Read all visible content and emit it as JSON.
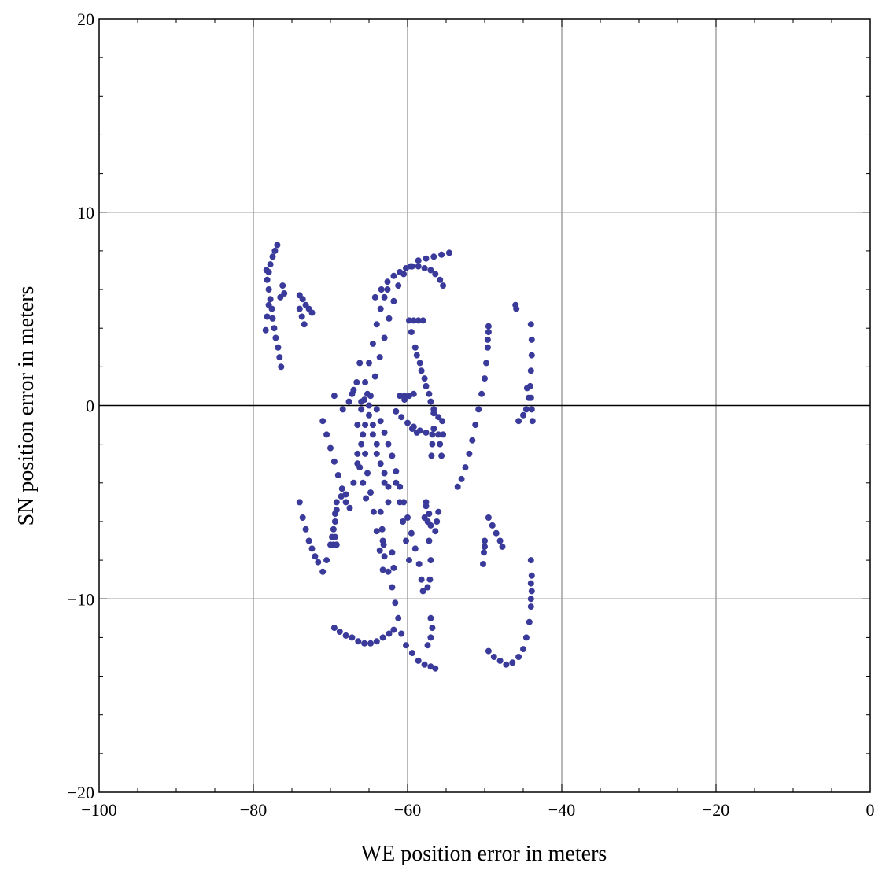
{
  "chart_data": {
    "type": "scatter",
    "xlabel": "WE position error in meters",
    "ylabel": "SN position error in meters",
    "xlim": [
      -100,
      0
    ],
    "ylim": [
      -20,
      20
    ],
    "x_ticks": [
      -100,
      -80,
      -60,
      -40,
      -20,
      0
    ],
    "y_ticks": [
      -20,
      -10,
      0,
      10,
      20
    ],
    "x_tick_labels": [
      "−100",
      "−80",
      "−60",
      "−40",
      "−20",
      "0"
    ],
    "y_tick_labels": [
      "−20",
      "−10",
      "0",
      "10",
      "20"
    ],
    "grid": true,
    "zero_line": true,
    "marker_color": "#3a3a9a",
    "series": [
      {
        "points": [
          [
            -78.3,
            7.0
          ],
          [
            -78.2,
            6.5
          ],
          [
            -78.0,
            6.0
          ],
          [
            -77.8,
            5.5
          ],
          [
            -77.6,
            5.0
          ],
          [
            -77.5,
            4.5
          ],
          [
            -77.3,
            4.0
          ],
          [
            -77.1,
            3.5
          ],
          [
            -76.8,
            3.0
          ],
          [
            -76.6,
            2.5
          ],
          [
            -76.4,
            2.0
          ],
          [
            -78.0,
            6.9
          ],
          [
            -77.8,
            7.3
          ],
          [
            -77.5,
            7.7
          ],
          [
            -77.2,
            8.0
          ],
          [
            -76.9,
            8.3
          ],
          [
            -78.4,
            3.9
          ],
          [
            -78.2,
            4.6
          ],
          [
            -78.0,
            5.2
          ],
          [
            -76.2,
            6.2
          ],
          [
            -76.0,
            5.8
          ],
          [
            -76.5,
            5.6
          ],
          [
            -74.0,
            5.7
          ],
          [
            -73.6,
            5.5
          ],
          [
            -73.2,
            5.2
          ],
          [
            -72.8,
            5.0
          ],
          [
            -72.4,
            4.8
          ],
          [
            -74.0,
            5.0
          ],
          [
            -73.7,
            4.6
          ],
          [
            -73.4,
            4.2
          ],
          [
            -64.2,
            5.6
          ],
          [
            -63.4,
            6.0
          ],
          [
            -62.6,
            6.4
          ],
          [
            -61.8,
            6.7
          ],
          [
            -61.0,
            6.9
          ],
          [
            -60.2,
            7.1
          ],
          [
            -59.4,
            7.2
          ],
          [
            -58.6,
            7.2
          ],
          [
            -57.8,
            7.1
          ],
          [
            -57.0,
            7.0
          ],
          [
            -56.4,
            6.8
          ],
          [
            -55.8,
            6.5
          ],
          [
            -55.4,
            6.2
          ],
          [
            -64.8,
            0.5
          ],
          [
            -64.2,
            1.5
          ],
          [
            -63.6,
            2.5
          ],
          [
            -63.0,
            3.5
          ],
          [
            -62.4,
            4.5
          ],
          [
            -61.8,
            5.4
          ],
          [
            -61.2,
            6.2
          ],
          [
            -60.5,
            6.8
          ],
          [
            -59.6,
            7.2
          ],
          [
            -58.6,
            7.5
          ],
          [
            -57.6,
            7.6
          ],
          [
            -56.6,
            7.7
          ],
          [
            -55.6,
            7.8
          ],
          [
            -54.6,
            7.9
          ],
          [
            -66.0,
            0.2
          ],
          [
            -65.5,
            1.2
          ],
          [
            -65.0,
            2.2
          ],
          [
            -64.5,
            3.2
          ],
          [
            -64.0,
            4.2
          ],
          [
            -63.5,
            5.0
          ],
          [
            -63.0,
            5.6
          ],
          [
            -62.6,
            6.0
          ],
          [
            -59.8,
            4.4
          ],
          [
            -59.2,
            4.4
          ],
          [
            -58.6,
            4.4
          ],
          [
            -58.0,
            4.4
          ],
          [
            -59.5,
            3.8
          ],
          [
            -59.0,
            3.0
          ],
          [
            -58.4,
            2.2
          ],
          [
            -57.8,
            1.4
          ],
          [
            -57.2,
            0.6
          ],
          [
            -56.6,
            -0.2
          ],
          [
            -56.0,
            -0.6
          ],
          [
            -55.5,
            -0.8
          ],
          [
            -58.8,
            2.6
          ],
          [
            -58.2,
            1.8
          ],
          [
            -57.6,
            1.0
          ],
          [
            -57.0,
            0.2
          ],
          [
            -56.6,
            -0.4
          ],
          [
            -56.6,
            -1.2
          ],
          [
            -56.8,
            -2.0
          ],
          [
            -56.9,
            -2.6
          ],
          [
            -61.0,
            0.5
          ],
          [
            -60.4,
            0.5
          ],
          [
            -59.8,
            0.5
          ],
          [
            -59.2,
            0.6
          ],
          [
            -60.4,
            0.3
          ],
          [
            -61.5,
            -0.3
          ],
          [
            -60.8,
            -0.6
          ],
          [
            -60.0,
            -0.9
          ],
          [
            -59.2,
            -1.1
          ],
          [
            -58.4,
            -1.3
          ],
          [
            -57.6,
            -1.4
          ],
          [
            -56.8,
            -1.5
          ],
          [
            -56.0,
            -1.5
          ],
          [
            -55.4,
            -1.5
          ],
          [
            -59.4,
            -1.2
          ],
          [
            -58.8,
            -1.4
          ],
          [
            -49.5,
            3.8
          ],
          [
            -49.6,
            3.0
          ],
          [
            -49.8,
            2.2
          ],
          [
            -50.0,
            1.4
          ],
          [
            -50.4,
            0.6
          ],
          [
            -50.8,
            -0.2
          ],
          [
            -51.2,
            -1.0
          ],
          [
            -51.6,
            -1.8
          ],
          [
            -52.0,
            -2.5
          ],
          [
            -52.5,
            -3.2
          ],
          [
            -53.0,
            -3.8
          ],
          [
            -53.5,
            -4.2
          ],
          [
            -49.5,
            4.1
          ],
          [
            -49.6,
            3.4
          ],
          [
            -44.0,
            4.2
          ],
          [
            -43.9,
            3.4
          ],
          [
            -43.9,
            2.6
          ],
          [
            -44.0,
            1.8
          ],
          [
            -44.1,
            1.0
          ],
          [
            -44.3,
            0.4
          ],
          [
            -44.6,
            -0.2
          ],
          [
            -45.0,
            -0.5
          ],
          [
            -45.6,
            -0.8
          ],
          [
            -43.8,
            -0.8
          ],
          [
            -43.9,
            -0.2
          ],
          [
            -44.0,
            0.4
          ],
          [
            -44.5,
            0.9
          ],
          [
            -46.0,
            5.2
          ],
          [
            -45.9,
            5.0
          ],
          [
            -66.5,
            -1.0
          ],
          [
            -66.0,
            -0.2
          ],
          [
            -65.6,
            0.3
          ],
          [
            -65.2,
            0.6
          ],
          [
            -67.0,
            0.8
          ],
          [
            -66.6,
            1.2
          ],
          [
            -66.2,
            2.2
          ],
          [
            -67.2,
            0.6
          ],
          [
            -67.6,
            0.2
          ],
          [
            -69.5,
            0.5
          ],
          [
            -68.4,
            -0.2
          ],
          [
            -71.0,
            -0.8
          ],
          [
            -70.5,
            -1.5
          ],
          [
            -70.0,
            -2.2
          ],
          [
            -69.5,
            -2.9
          ],
          [
            -69.0,
            -3.6
          ],
          [
            -68.5,
            -4.3
          ],
          [
            -68.0,
            -5.0
          ],
          [
            -67.5,
            -5.3
          ],
          [
            -67.0,
            -4.0
          ],
          [
            -66.5,
            -3.0
          ],
          [
            -66.0,
            -2.0
          ],
          [
            -65.5,
            -1.0
          ],
          [
            -65.0,
            0.0
          ],
          [
            -64.5,
            -1.0
          ],
          [
            -64.0,
            -2.0
          ],
          [
            -63.5,
            -3.0
          ],
          [
            -63.0,
            -4.0
          ],
          [
            -62.5,
            -5.0
          ],
          [
            -64.0,
            -0.2
          ],
          [
            -63.5,
            -0.8
          ],
          [
            -63.0,
            -1.4
          ],
          [
            -62.5,
            -2.0
          ],
          [
            -62.0,
            -2.6
          ],
          [
            -61.5,
            -3.4
          ],
          [
            -61.0,
            -4.2
          ],
          [
            -60.5,
            -5.0
          ],
          [
            -60.0,
            -5.8
          ],
          [
            -59.5,
            -6.6
          ],
          [
            -59.0,
            -7.4
          ],
          [
            -58.5,
            -8.2
          ],
          [
            -58.2,
            -9.0
          ],
          [
            -58.0,
            -9.6
          ],
          [
            -61.5,
            -4.0
          ],
          [
            -61.0,
            -5.0
          ],
          [
            -60.6,
            -6.0
          ],
          [
            -60.2,
            -7.0
          ],
          [
            -59.8,
            -8.0
          ],
          [
            -65.0,
            -0.5
          ],
          [
            -64.5,
            -1.5
          ],
          [
            -64.0,
            -2.5
          ],
          [
            -63.0,
            -3.5
          ],
          [
            -62.5,
            -4.2
          ],
          [
            -63.2,
            -7.0
          ],
          [
            -63.0,
            -7.8
          ],
          [
            -62.5,
            -8.6
          ],
          [
            -62.0,
            -9.4
          ],
          [
            -61.6,
            -10.2
          ],
          [
            -61.2,
            -11.0
          ],
          [
            -60.8,
            -11.8
          ],
          [
            -60.2,
            -12.4
          ],
          [
            -59.4,
            -12.8
          ],
          [
            -58.6,
            -13.2
          ],
          [
            -57.8,
            -13.4
          ],
          [
            -57.0,
            -13.5
          ],
          [
            -56.4,
            -13.6
          ],
          [
            -65.8,
            -1.5
          ],
          [
            -65.5,
            -2.5
          ],
          [
            -65.2,
            -3.5
          ],
          [
            -64.8,
            -4.5
          ],
          [
            -64.4,
            -5.5
          ],
          [
            -64.0,
            -6.5
          ],
          [
            -63.6,
            -7.5
          ],
          [
            -63.2,
            -8.5
          ],
          [
            -66.5,
            -2.5
          ],
          [
            -66.2,
            -3.2
          ],
          [
            -65.8,
            -4.0
          ],
          [
            -65.4,
            -4.8
          ],
          [
            -57.6,
            -5.0
          ],
          [
            -57.4,
            -6.0
          ],
          [
            -57.2,
            -7.0
          ],
          [
            -57.0,
            -8.0
          ],
          [
            -57.1,
            -9.0
          ],
          [
            -57.4,
            -9.4
          ],
          [
            -56.0,
            -5.5
          ],
          [
            -56.2,
            -6.0
          ],
          [
            -56.4,
            -6.5
          ],
          [
            -57.2,
            -5.6
          ],
          [
            -57.0,
            -6.2
          ],
          [
            -55.8,
            -2.0
          ],
          [
            -55.6,
            -2.6
          ],
          [
            -74.0,
            -5.0
          ],
          [
            -73.6,
            -5.8
          ],
          [
            -73.2,
            -6.4
          ],
          [
            -72.8,
            -7.0
          ],
          [
            -72.4,
            -7.4
          ],
          [
            -72.0,
            -7.8
          ],
          [
            -71.6,
            -8.1
          ],
          [
            -71.0,
            -8.6
          ],
          [
            -70.5,
            -8.0
          ],
          [
            -70.0,
            -7.2
          ],
          [
            -69.6,
            -6.4
          ],
          [
            -69.4,
            -5.6
          ],
          [
            -69.2,
            -5.0
          ],
          [
            -68.6,
            -4.7
          ],
          [
            -68.0,
            -4.6
          ],
          [
            -69.8,
            -6.8
          ],
          [
            -69.6,
            -7.2
          ],
          [
            -69.4,
            -6.0
          ],
          [
            -69.2,
            -5.4
          ],
          [
            -63.5,
            -5.5
          ],
          [
            -63.3,
            -6.4
          ],
          [
            -63.1,
            -7.2
          ],
          [
            -62.0,
            -7.6
          ],
          [
            -61.8,
            -8.4
          ],
          [
            -69.5,
            -11.5
          ],
          [
            -68.8,
            -11.7
          ],
          [
            -68.0,
            -11.9
          ],
          [
            -67.2,
            -12.0
          ],
          [
            -66.4,
            -12.2
          ],
          [
            -65.6,
            -12.3
          ],
          [
            -64.8,
            -12.3
          ],
          [
            -64.0,
            -12.2
          ],
          [
            -63.2,
            -12.0
          ],
          [
            -62.4,
            -11.8
          ],
          [
            -61.8,
            -11.6
          ],
          [
            -57.0,
            -11.0
          ],
          [
            -56.8,
            -11.5
          ],
          [
            -57.0,
            -12.0
          ],
          [
            -57.4,
            -12.4
          ],
          [
            -57.6,
            -5.2
          ],
          [
            -57.8,
            -5.8
          ],
          [
            -49.5,
            -5.8
          ],
          [
            -49.0,
            -6.2
          ],
          [
            -48.5,
            -6.6
          ],
          [
            -48.0,
            -7.0
          ],
          [
            -47.7,
            -7.3
          ],
          [
            -50.0,
            -7.0
          ],
          [
            -50.1,
            -7.6
          ],
          [
            -50.2,
            -8.2
          ],
          [
            -50.0,
            -7.3
          ],
          [
            -44.0,
            -8.0
          ],
          [
            -43.9,
            -8.8
          ],
          [
            -43.9,
            -9.6
          ],
          [
            -44.0,
            -10.4
          ],
          [
            -44.2,
            -11.2
          ],
          [
            -44.6,
            -12.0
          ],
          [
            -45.0,
            -12.6
          ],
          [
            -45.6,
            -13.0
          ],
          [
            -46.4,
            -13.3
          ],
          [
            -47.2,
            -13.4
          ],
          [
            -48.0,
            -13.2
          ],
          [
            -48.8,
            -13.0
          ],
          [
            -49.5,
            -12.7
          ],
          [
            -44.0,
            -9.2
          ],
          [
            -44.0,
            -10.0
          ],
          [
            -69.2,
            -7.2
          ],
          [
            -69.4,
            -6.8
          ]
        ]
      }
    ]
  }
}
